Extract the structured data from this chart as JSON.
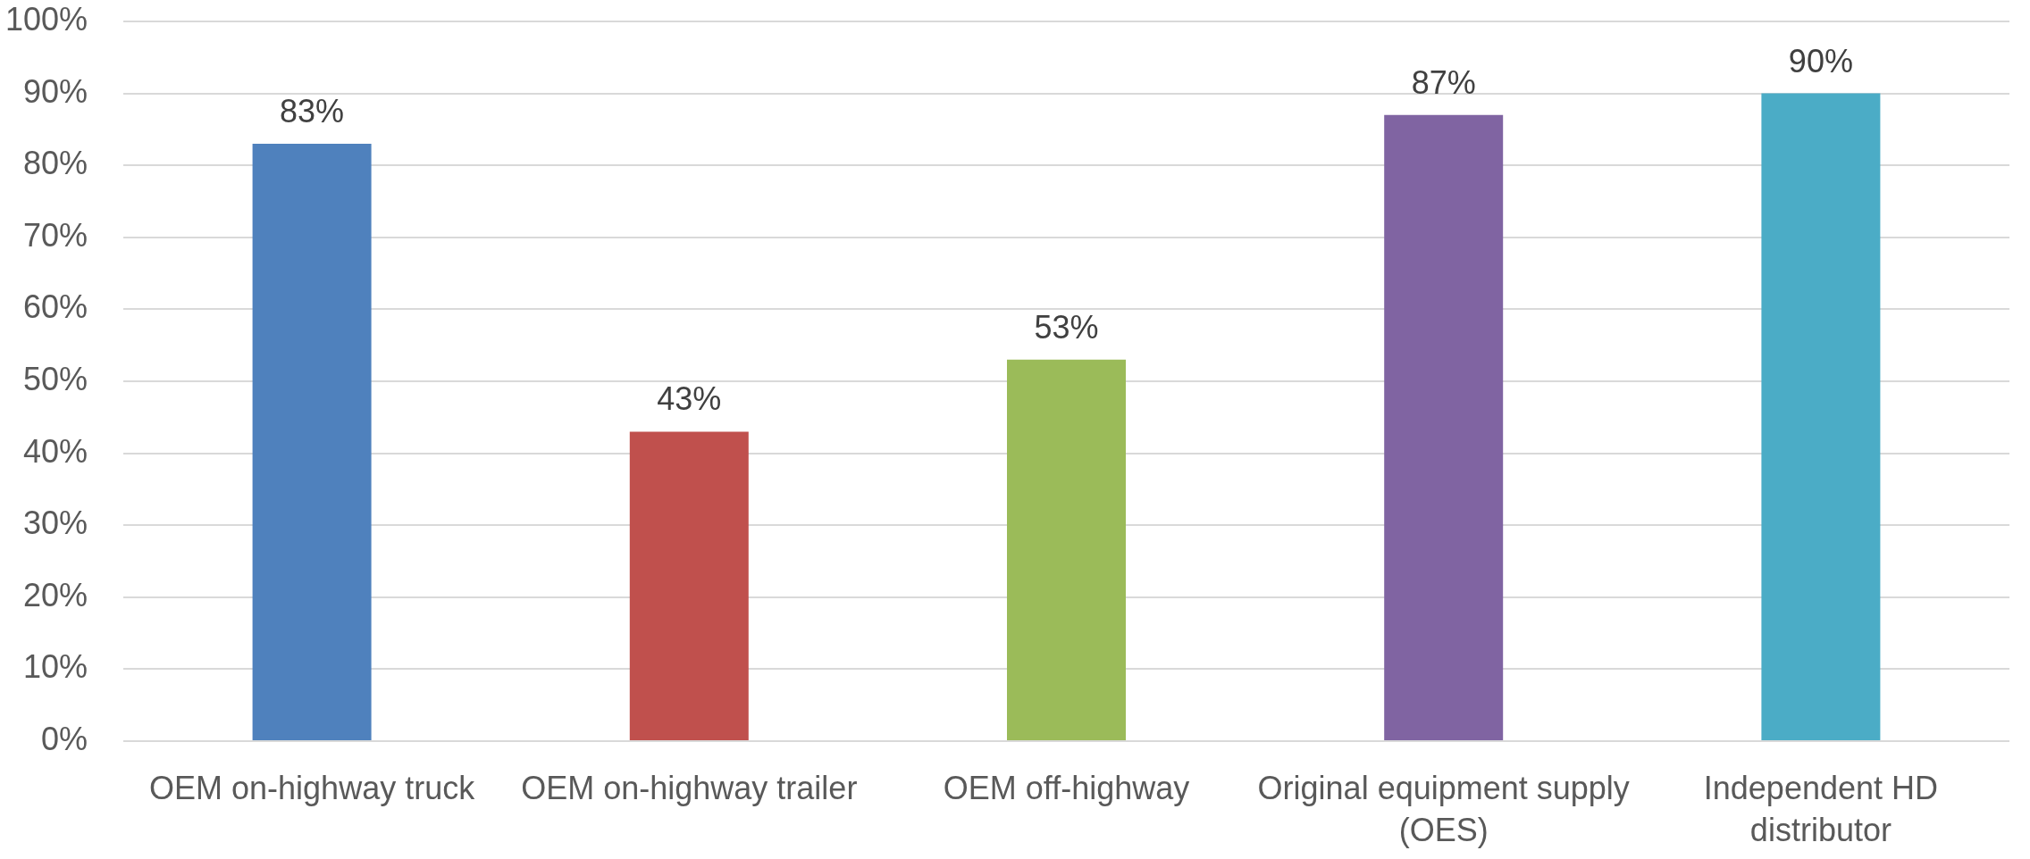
{
  "chart_data": {
    "type": "bar",
    "categories": [
      "OEM on-highway truck",
      "OEM on-highway trailer",
      "OEM off-highway",
      "Original equipment supply (OES)",
      "Independent HD distributor"
    ],
    "values": [
      83,
      43,
      53,
      87,
      90
    ],
    "colors": [
      "#4f81bd",
      "#c0504d",
      "#9bbb59",
      "#8064a2",
      "#4bacc6"
    ],
    "value_labels": [
      "83%",
      "43%",
      "53%",
      "87%",
      "90%"
    ],
    "ylim": [
      0,
      100
    ],
    "yticks": [
      {
        "value": 0,
        "label": "0%"
      },
      {
        "value": 10,
        "label": "10%"
      },
      {
        "value": 20,
        "label": "20%"
      },
      {
        "value": 30,
        "label": "30%"
      },
      {
        "value": 40,
        "label": "40%"
      },
      {
        "value": 50,
        "label": "50%"
      },
      {
        "value": 60,
        "label": "60%"
      },
      {
        "value": 70,
        "label": "70%"
      },
      {
        "value": 80,
        "label": "80%"
      },
      {
        "value": 90,
        "label": "90%"
      },
      {
        "value": 100,
        "label": "100%"
      }
    ],
    "grid": "y"
  }
}
